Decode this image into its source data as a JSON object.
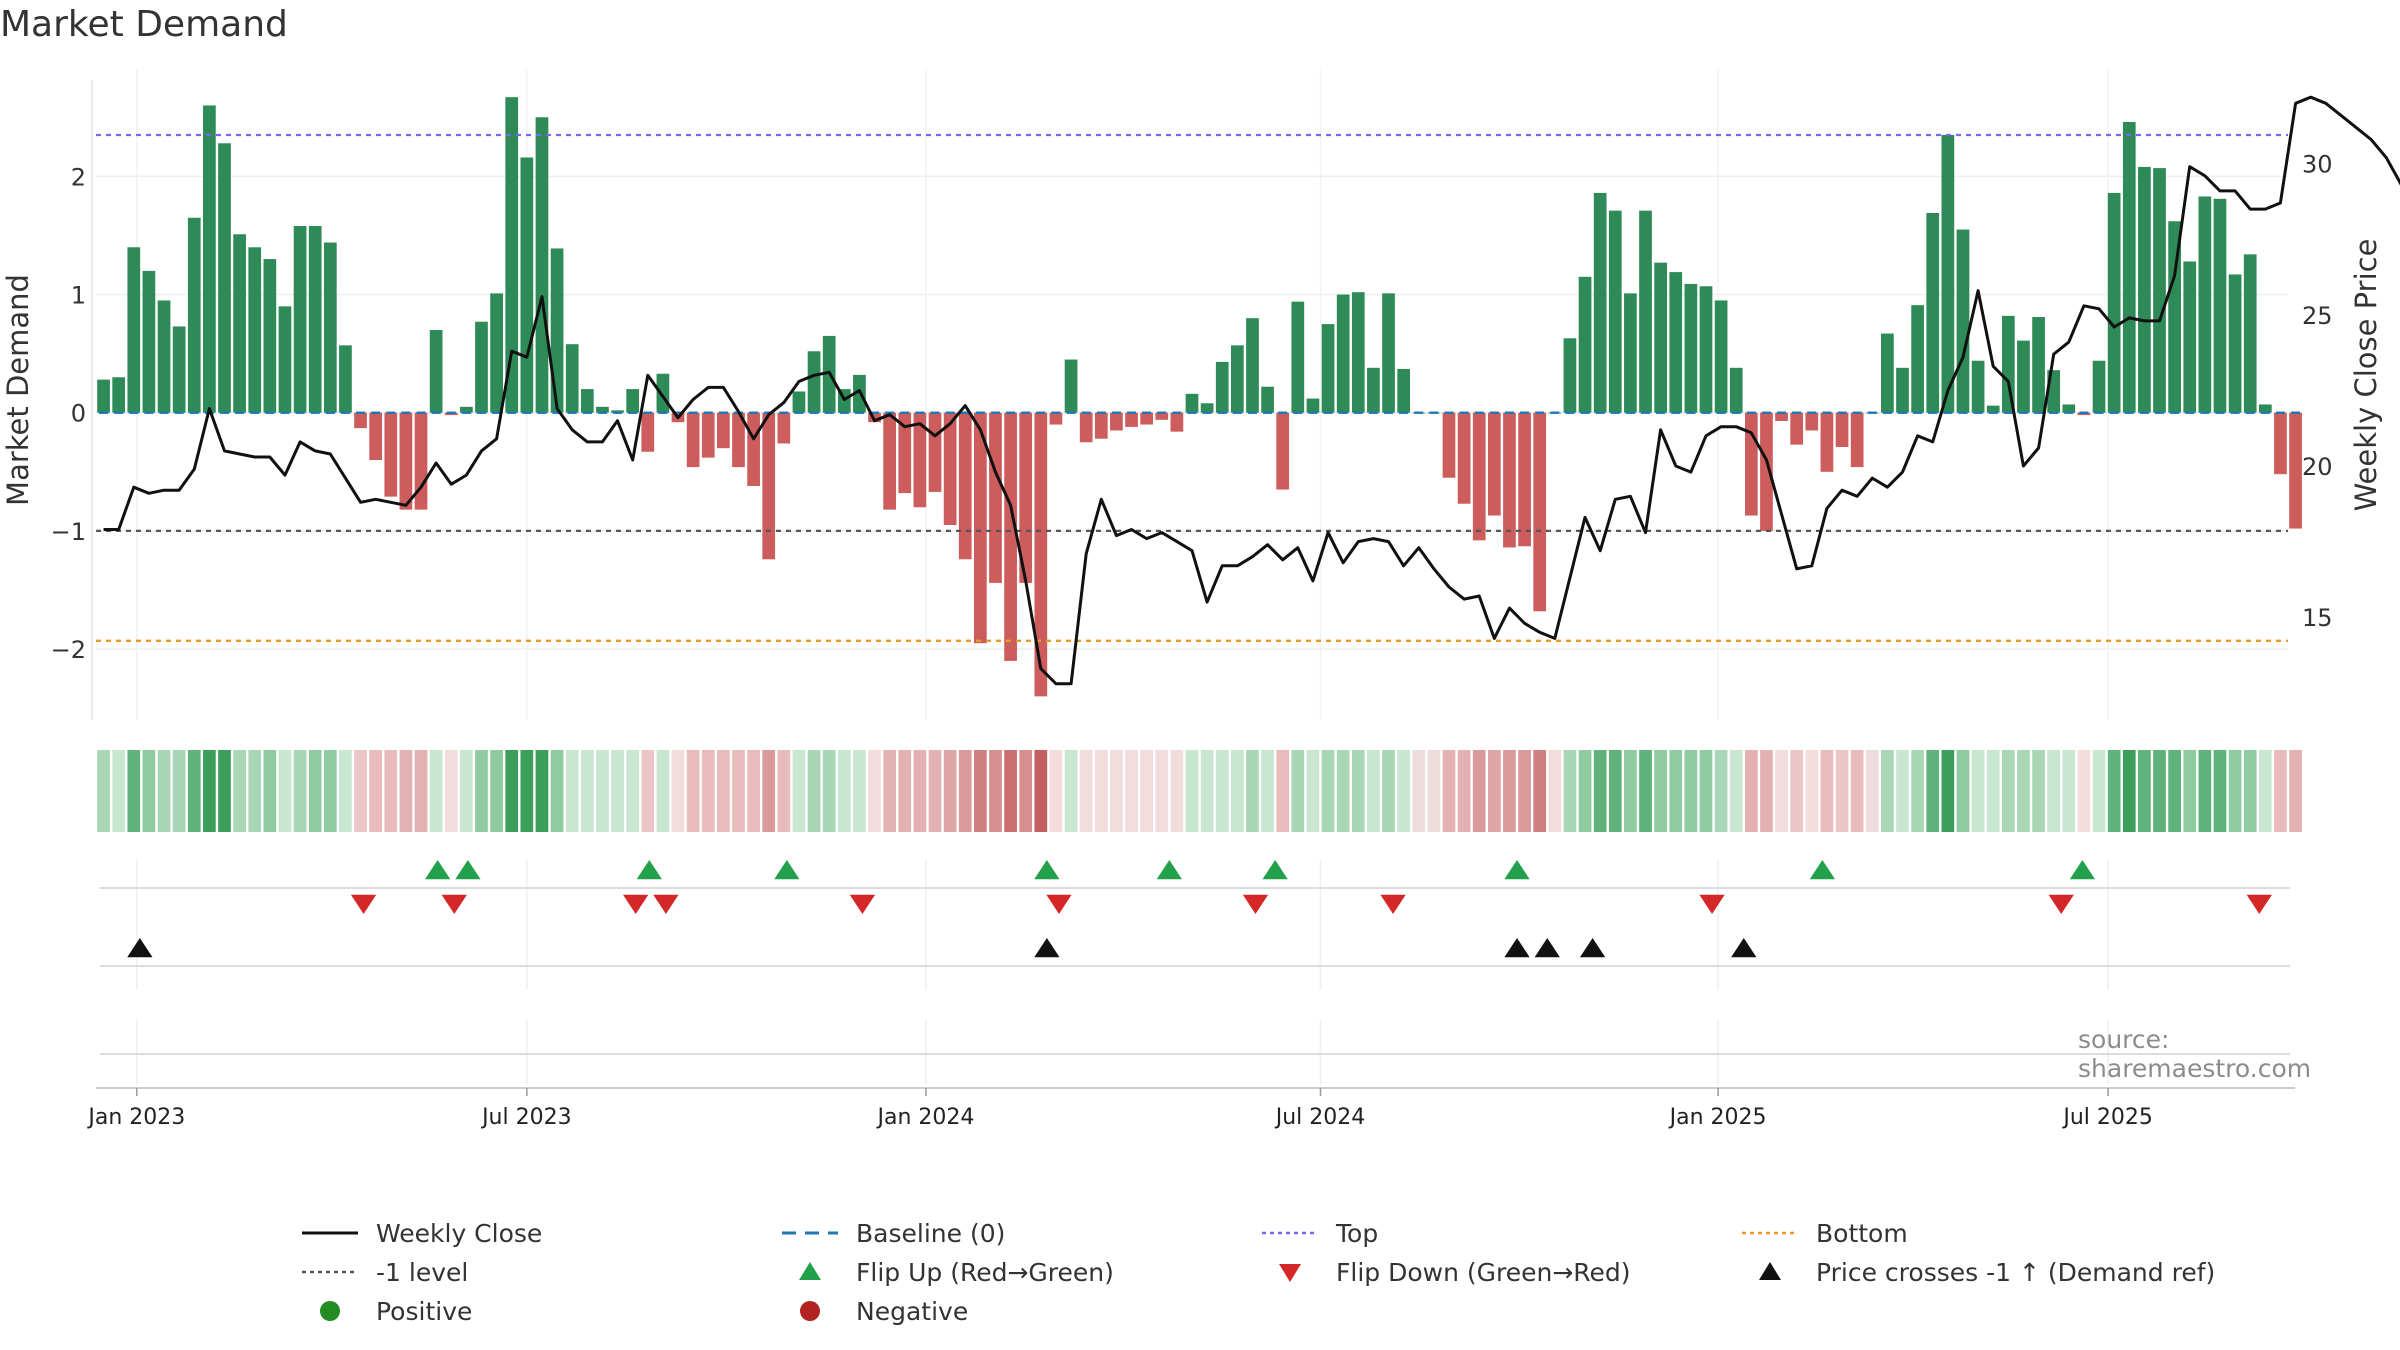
{
  "title": "Market Demand",
  "source": "source: sharemaestro.com",
  "colors": {
    "positive": "#2e8b57",
    "negative": "#cd5c5c",
    "price": "#111111",
    "top": "#7b68ee",
    "bottom": "#e69a28",
    "minus1": "#555555",
    "baseline": "#1f77b4",
    "flip_up": "#22a04b",
    "flip_down": "#d62728",
    "cross": "#111111",
    "positive_dot": "#228b22",
    "negative_dot": "#b22222"
  },
  "chart_data": {
    "type": "bar+line",
    "title": "Market Demand",
    "ylabel_left": "Market Demand",
    "ylabel_right": "Weekly Close Price",
    "ylim_left": [
      -2.6,
      2.9
    ],
    "ylim_right": [
      11.6,
      33.1
    ],
    "yticks_left": [
      -2,
      -1,
      0,
      1,
      2
    ],
    "ytick_labels_left": [
      "−2",
      "−1",
      "0",
      "1",
      "2"
    ],
    "yticks_right": [
      15,
      20,
      25,
      30
    ],
    "ytick_labels_right": [
      "15",
      "20",
      "25",
      "30"
    ],
    "x_start": "2023-01-02",
    "week_count": 145,
    "xticks": [
      {
        "label": "Jan 2023",
        "week": 2.2
      },
      {
        "label": "Jul 2023",
        "week": 28.0
      },
      {
        "label": "Jan 2024",
        "week": 54.4
      },
      {
        "label": "Jul 2024",
        "week": 80.5
      },
      {
        "label": "Jan 2025",
        "week": 106.8
      },
      {
        "label": "Jul 2025",
        "week": 132.6
      }
    ],
    "reference_lines": {
      "top": 2.35,
      "bottom": -1.93,
      "minus1": -1.0,
      "baseline": 0
    },
    "demand": [
      0.28,
      0.3,
      1.4,
      1.2,
      0.95,
      0.73,
      1.65,
      2.6,
      2.28,
      1.51,
      1.4,
      1.3,
      0.9,
      1.58,
      1.58,
      1.44,
      0.57,
      -0.13,
      -0.4,
      -0.71,
      -0.82,
      -0.82,
      0.7,
      -0.02,
      0.05,
      0.77,
      1.01,
      2.67,
      2.16,
      2.5,
      1.39,
      0.58,
      0.2,
      0.05,
      0.02,
      0.2,
      -0.33,
      0.33,
      -0.08,
      -0.46,
      -0.38,
      -0.3,
      -0.46,
      -0.62,
      -1.24,
      -0.26,
      0.18,
      0.52,
      0.65,
      0.2,
      0.32,
      -0.08,
      -0.82,
      -0.68,
      -0.8,
      -0.67,
      -0.95,
      -1.24,
      -1.95,
      -1.44,
      -2.1,
      -1.44,
      -2.4,
      -0.1,
      0.45,
      -0.25,
      -0.22,
      -0.15,
      -0.12,
      -0.1,
      -0.06,
      -0.16,
      0.16,
      0.08,
      0.43,
      0.57,
      0.8,
      0.22,
      -0.65,
      0.94,
      0.12,
      0.75,
      1.0,
      1.02,
      0.38,
      1.01,
      0.37,
      0.0,
      0.0,
      -0.55,
      -0.77,
      -1.08,
      -0.87,
      -1.14,
      -1.13,
      -1.68,
      0.0,
      0.63,
      1.15,
      1.86,
      1.71,
      1.01,
      1.71,
      1.27,
      1.19,
      1.09,
      1.07,
      0.95,
      0.38,
      -0.87,
      -1.0,
      -0.07,
      -0.27,
      -0.15,
      -0.5,
      -0.29,
      -0.46,
      0.0,
      0.67,
      0.38,
      0.91,
      1.69,
      2.35,
      1.55,
      0.44,
      0.06,
      0.82,
      0.61,
      0.81,
      0.36,
      0.07,
      -0.02,
      0.44,
      1.86,
      2.46,
      2.08,
      2.07,
      1.62,
      1.28,
      1.83,
      1.81,
      1.17,
      1.34,
      0.07,
      -0.52,
      -0.98
    ],
    "price": [
      17.9,
      17.9,
      19.3,
      19.1,
      19.2,
      19.2,
      19.9,
      21.9,
      20.5,
      20.4,
      20.3,
      20.3,
      19.7,
      20.8,
      20.5,
      20.4,
      19.6,
      18.8,
      18.9,
      18.8,
      18.7,
      19.3,
      20.1,
      19.4,
      19.7,
      20.5,
      20.9,
      23.8,
      23.6,
      25.6,
      21.9,
      21.2,
      20.8,
      20.8,
      21.5,
      20.2,
      23.0,
      22.3,
      21.6,
      22.2,
      22.6,
      22.6,
      21.8,
      20.9,
      21.7,
      22.1,
      22.8,
      23.0,
      23.1,
      22.2,
      22.5,
      21.5,
      21.7,
      21.3,
      21.4,
      21.0,
      21.4,
      22.0,
      21.2,
      19.8,
      18.7,
      16.2,
      13.3,
      12.8,
      12.8,
      17.1,
      18.9,
      17.7,
      17.9,
      17.6,
      17.8,
      17.5,
      17.2,
      15.5,
      16.7,
      16.7,
      17.0,
      17.4,
      16.9,
      17.3,
      16.2,
      17.8,
      16.8,
      17.5,
      17.6,
      17.5,
      16.7,
      17.3,
      16.6,
      16.0,
      15.6,
      15.7,
      14.3,
      15.3,
      14.8,
      14.5,
      14.3,
      16.3,
      18.3,
      17.2,
      18.9,
      19.0,
      17.8,
      21.2,
      20.0,
      19.8,
      21.0,
      21.3,
      21.3,
      21.1,
      20.2,
      18.4,
      16.6,
      16.7,
      18.6,
      19.2,
      19.0,
      19.6,
      19.3,
      19.8,
      21.0,
      20.8,
      22.5,
      23.6,
      25.8,
      23.3,
      22.8,
      20.0,
      20.6,
      23.7,
      24.1,
      25.3,
      25.2,
      24.6,
      24.9,
      24.8,
      24.8,
      26.3,
      29.9,
      29.6,
      29.1,
      29.1,
      28.5,
      28.5,
      28.7,
      32.0,
      32.2,
      32.0,
      31.6,
      31.2,
      30.8,
      30.2,
      29.3
    ],
    "shade_colors": [
      "#a9d6b4",
      "#c8e6d0",
      "#5fb37a",
      "#8ecb9f",
      "#a9d6b4",
      "#a9d6b4",
      "#5fb37a",
      "#3d9e5c",
      "#3d9e5c",
      "#a9d6b4",
      "#a9d6b4",
      "#8ecb9f",
      "#c8e6d0",
      "#a9d6b4",
      "#8ecb9f",
      "#8ecb9f",
      "#c8e6d0",
      "#ecc6c6",
      "#e8bcbc",
      "#e8bcbc",
      "#e3b1b1",
      "#e3b1b1",
      "#c8e6d0",
      "#f2dcdc",
      "#c8e6d0",
      "#8ecb9f",
      "#8ecb9f",
      "#3d9e5c",
      "#3d9e5c",
      "#3d9e5c",
      "#8ecb9f",
      "#c8e6d0",
      "#c8e6d0",
      "#c8e6d0",
      "#c8e6d0",
      "#c8e6d0",
      "#ecc6c6",
      "#c8e6d0",
      "#f2dcdc",
      "#e8bcbc",
      "#e8bcbc",
      "#e8bcbc",
      "#e8bcbc",
      "#e8bcbc",
      "#d99a9a",
      "#e8bcbc",
      "#c8e6d0",
      "#a9d6b4",
      "#a9d6b4",
      "#c8e6d0",
      "#c8e6d0",
      "#f2dcdc",
      "#e3b1b1",
      "#e3b1b1",
      "#e3b1b1",
      "#e3b1b1",
      "#dfa6a6",
      "#d99a9a",
      "#cf7f7f",
      "#d68f8f",
      "#c96f6f",
      "#d68f8f",
      "#c65f5f",
      "#f2dcdc",
      "#c8e6d0",
      "#f2dcdc",
      "#f2dcdc",
      "#f2dcdc",
      "#f2dcdc",
      "#f2dcdc",
      "#f2dcdc",
      "#f2dcdc",
      "#c8e6d0",
      "#c8e6d0",
      "#c8e6d0",
      "#c8e6d0",
      "#a9d6b4",
      "#c8e6d0",
      "#e8bcbc",
      "#a9d6b4",
      "#c8e6d0",
      "#a9d6b4",
      "#a9d6b4",
      "#a9d6b4",
      "#c8e6d0",
      "#a9d6b4",
      "#c8e6d0",
      "#eedcdc",
      "#eedcdc",
      "#e3b1b1",
      "#e3b1b1",
      "#d99a9a",
      "#dfa6a6",
      "#d99a9a",
      "#d99a9a",
      "#cf7f7f",
      "#f2dcdc",
      "#a9d6b4",
      "#8ecb9f",
      "#5fb37a",
      "#5fb37a",
      "#8ecb9f",
      "#5fb37a",
      "#8ecb9f",
      "#8ecb9f",
      "#8ecb9f",
      "#8ecb9f",
      "#a9d6b4",
      "#c8e6d0",
      "#e3b1b1",
      "#e3b1b1",
      "#f2dcdc",
      "#ecc6c6",
      "#f2dcdc",
      "#e8bcbc",
      "#ecc6c6",
      "#e8bcbc",
      "#eedcdc",
      "#a9d6b4",
      "#c8e6d0",
      "#a9d6b4",
      "#5fb37a",
      "#3d9e5c",
      "#8ecb9f",
      "#c8e6d0",
      "#c8e6d0",
      "#a9d6b4",
      "#a9d6b4",
      "#a9d6b4",
      "#c8e6d0",
      "#c8e6d0",
      "#f2dcdc",
      "#c8e6d0",
      "#5fb37a",
      "#3d9e5c",
      "#5fb37a",
      "#5fb37a",
      "#5fb37a",
      "#8ecb9f",
      "#5fb37a",
      "#5fb37a",
      "#8ecb9f",
      "#8ecb9f",
      "#c8e6d0",
      "#e8bcbc",
      "#e3b1b1"
    ],
    "flip_up_weeks": [
      22.1,
      24.1,
      36.1,
      45.2,
      62.4,
      70.5,
      77.5,
      93.5,
      113.7,
      130.9
    ],
    "flip_down_weeks": [
      17.2,
      23.2,
      35.2,
      37.2,
      50.2,
      63.2,
      76.2,
      85.3,
      106.4,
      129.5,
      142.6
    ],
    "price_cross_weeks": [
      2.4,
      62.4,
      93.5,
      95.5,
      98.5,
      108.5
    ]
  },
  "legend": [
    {
      "label": "Weekly Close",
      "symbol": "solid-line",
      "color": "#111111"
    },
    {
      "label": "Baseline (0)",
      "symbol": "dashed-line",
      "color": "#1f77b4"
    },
    {
      "label": "Top",
      "symbol": "dotted-line",
      "color": "#7b68ee"
    },
    {
      "label": "Bottom",
      "symbol": "dotted-line",
      "color": "#e69a28"
    },
    {
      "label": "-1 level",
      "symbol": "dotted-line",
      "color": "#555555"
    },
    {
      "label": "Flip Up (Red→Green)",
      "symbol": "triangle-up",
      "color": "#22a04b"
    },
    {
      "label": "Flip Down (Green→Red)",
      "symbol": "triangle-down",
      "color": "#d62728"
    },
    {
      "label": "Price crosses -1 ↑ (Demand ref)",
      "symbol": "triangle-up",
      "color": "#111111"
    },
    {
      "label": "Positive",
      "symbol": "circle",
      "color": "#228b22"
    },
    {
      "label": "Negative",
      "symbol": "circle",
      "color": "#b22222"
    }
  ]
}
